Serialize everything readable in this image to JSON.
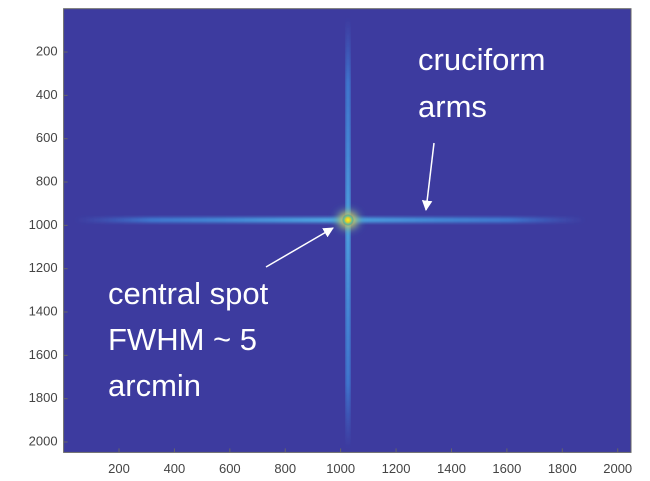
{
  "chart_data": {
    "type": "image",
    "xlim": [
      0,
      2048
    ],
    "ylim": [
      0,
      2048
    ],
    "y_reversed": true,
    "xticks": [
      200,
      400,
      600,
      800,
      1000,
      1200,
      1400,
      1600,
      1800,
      2000
    ],
    "yticks": [
      200,
      400,
      600,
      800,
      1000,
      1200,
      1400,
      1600,
      1800,
      2000
    ],
    "background_color": "#3d3b9f",
    "annotations": [
      {
        "lines": [
          "cruciform",
          "arms"
        ]
      },
      {
        "lines": [
          "central spot",
          "FWHM ~ 5",
          "arcmin"
        ]
      }
    ]
  }
}
